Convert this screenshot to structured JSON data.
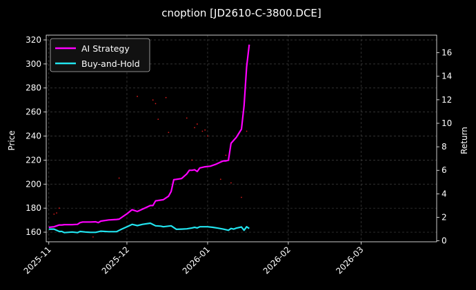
{
  "chart_data": {
    "type": "line",
    "title": "cnoption [JD2610-C-3800.DCE]",
    "ylabel_left": "Price",
    "ylabel_right": "Return",
    "x_ticks": [
      "2025-11",
      "2025-12",
      "2026-01",
      "2026-02",
      "2026-03"
    ],
    "x_range": [
      "2025-10-31",
      "2026-03-30"
    ],
    "y_left_ticks": [
      160,
      180,
      200,
      220,
      240,
      260,
      280,
      300,
      320
    ],
    "y_left_range": [
      152,
      324
    ],
    "y_right_ticks": [
      0,
      2,
      4,
      6,
      8,
      10,
      12,
      14,
      16
    ],
    "y_right_range": [
      -0.08,
      17.5
    ],
    "grid": true,
    "legend_position": "top-left",
    "colors": {
      "background": "#000000",
      "ai_strategy": "#ff00ff",
      "buy_and_hold": "#22e5f0",
      "price_dots": "#ff2020"
    },
    "series": [
      {
        "name": "AI Strategy",
        "axis": "right",
        "points": [
          [
            "2025-11-01",
            1.15
          ],
          [
            "2025-11-03",
            1.2
          ],
          [
            "2025-11-05",
            1.35
          ],
          [
            "2025-11-06",
            1.35
          ],
          [
            "2025-11-07",
            1.38
          ],
          [
            "2025-11-10",
            1.38
          ],
          [
            "2025-11-12",
            1.4
          ],
          [
            "2025-11-13",
            1.55
          ],
          [
            "2025-11-14",
            1.6
          ],
          [
            "2025-11-17",
            1.6
          ],
          [
            "2025-11-19",
            1.62
          ],
          [
            "2025-11-20",
            1.55
          ],
          [
            "2025-11-21",
            1.68
          ],
          [
            "2025-11-24",
            1.78
          ],
          [
            "2025-11-27",
            1.82
          ],
          [
            "2025-11-28",
            1.85
          ],
          [
            "2025-12-01",
            2.3
          ],
          [
            "2025-12-03",
            2.65
          ],
          [
            "2025-12-05",
            2.5
          ],
          [
            "2025-12-08",
            2.8
          ],
          [
            "2025-12-10",
            3.0
          ],
          [
            "2025-12-11",
            3.0
          ],
          [
            "2025-12-12",
            3.4
          ],
          [
            "2025-12-15",
            3.5
          ],
          [
            "2025-12-17",
            3.8
          ],
          [
            "2025-12-18",
            4.2
          ],
          [
            "2025-12-19",
            5.2
          ],
          [
            "2025-12-22",
            5.3
          ],
          [
            "2025-12-24",
            5.7
          ],
          [
            "2025-12-25",
            6.0
          ],
          [
            "2025-12-26",
            6.0
          ],
          [
            "2025-12-27",
            6.05
          ],
          [
            "2025-12-28",
            5.9
          ],
          [
            "2025-12-29",
            6.2
          ],
          [
            "2025-12-31",
            6.3
          ],
          [
            "2026-01-02",
            6.35
          ],
          [
            "2026-01-04",
            6.5
          ],
          [
            "2026-01-06",
            6.7
          ],
          [
            "2026-01-07",
            6.8
          ],
          [
            "2026-01-08",
            6.8
          ],
          [
            "2026-01-09",
            6.85
          ],
          [
            "2026-01-10",
            8.3
          ],
          [
            "2026-01-12",
            8.8
          ],
          [
            "2026-01-14",
            9.5
          ],
          [
            "2026-01-15",
            11.5
          ],
          [
            "2026-01-16",
            14.8
          ],
          [
            "2026-01-17",
            16.7
          ]
        ]
      },
      {
        "name": "Buy-and-Hold",
        "axis": "right",
        "points": [
          [
            "2025-11-01",
            1.0
          ],
          [
            "2025-11-03",
            1.0
          ],
          [
            "2025-11-05",
            0.8
          ],
          [
            "2025-11-06",
            0.8
          ],
          [
            "2025-11-07",
            0.7
          ],
          [
            "2025-11-10",
            0.75
          ],
          [
            "2025-11-12",
            0.7
          ],
          [
            "2025-11-13",
            0.8
          ],
          [
            "2025-11-15",
            0.75
          ],
          [
            "2025-11-17",
            0.72
          ],
          [
            "2025-11-19",
            0.72
          ],
          [
            "2025-11-21",
            0.82
          ],
          [
            "2025-11-24",
            0.78
          ],
          [
            "2025-11-27",
            0.78
          ],
          [
            "2025-11-29",
            1.0
          ],
          [
            "2025-12-01",
            1.2
          ],
          [
            "2025-12-03",
            1.4
          ],
          [
            "2025-12-05",
            1.3
          ],
          [
            "2025-12-07",
            1.4
          ],
          [
            "2025-12-10",
            1.5
          ],
          [
            "2025-12-12",
            1.28
          ],
          [
            "2025-12-14",
            1.25
          ],
          [
            "2025-12-15",
            1.2
          ],
          [
            "2025-12-18",
            1.28
          ],
          [
            "2025-12-20",
            0.98
          ],
          [
            "2025-12-22",
            1.0
          ],
          [
            "2025-12-24",
            1.02
          ],
          [
            "2025-12-26",
            1.1
          ],
          [
            "2025-12-27",
            1.15
          ],
          [
            "2025-12-28",
            1.1
          ],
          [
            "2025-12-29",
            1.2
          ],
          [
            "2026-01-01",
            1.2
          ],
          [
            "2026-01-03",
            1.15
          ],
          [
            "2026-01-05",
            1.08
          ],
          [
            "2026-01-07",
            1.0
          ],
          [
            "2026-01-08",
            0.95
          ],
          [
            "2026-01-09",
            0.9
          ],
          [
            "2026-01-10",
            1.05
          ],
          [
            "2026-01-11",
            1.0
          ],
          [
            "2026-01-12",
            1.08
          ],
          [
            "2026-01-14",
            1.18
          ],
          [
            "2026-01-15",
            0.9
          ],
          [
            "2026-01-16",
            1.2
          ],
          [
            "2026-01-17",
            1.05
          ]
        ]
      },
      {
        "name": "Price",
        "axis": "left",
        "style": "dots",
        "points": [
          [
            "2025-11-03",
            175
          ],
          [
            "2025-11-04",
            176
          ],
          [
            "2025-11-05",
            180
          ],
          [
            "2025-11-18",
            156
          ],
          [
            "2025-11-28",
            205
          ],
          [
            "2025-12-05",
            273
          ],
          [
            "2025-12-11",
            270
          ],
          [
            "2025-12-12",
            267
          ],
          [
            "2025-12-13",
            254
          ],
          [
            "2025-12-16",
            272
          ],
          [
            "2025-12-17",
            243
          ],
          [
            "2025-12-24",
            255
          ],
          [
            "2025-12-26",
            220
          ],
          [
            "2025-12-27",
            247
          ],
          [
            "2025-12-28",
            250
          ],
          [
            "2025-12-30",
            244
          ],
          [
            "2025-12-31",
            245
          ],
          [
            "2026-01-01",
            240
          ],
          [
            "2026-01-06",
            204
          ],
          [
            "2026-01-08",
            224
          ],
          [
            "2026-01-10",
            201
          ],
          [
            "2026-01-14",
            189
          ],
          [
            "2026-01-16",
            244
          ]
        ]
      }
    ]
  }
}
